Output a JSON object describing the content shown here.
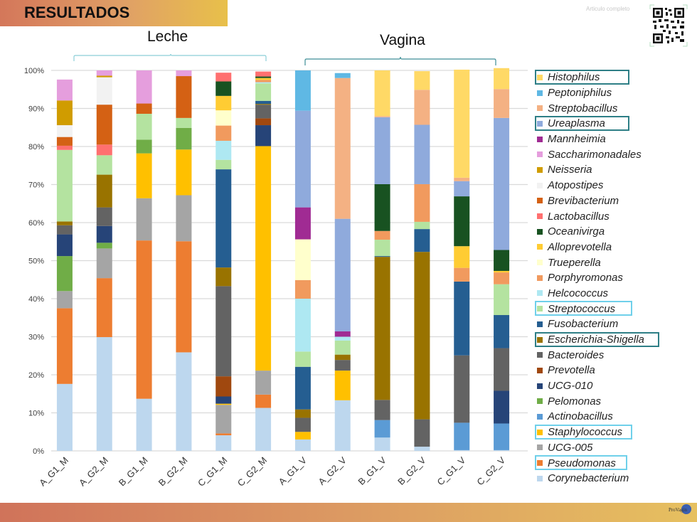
{
  "header": {
    "title": "RESULTADOS"
  },
  "top_right": {
    "article_link": "Articulo completo",
    "qr_icon": "qr-code-icon"
  },
  "footer": {
    "logo_text": "ProVagin"
  },
  "groups": [
    {
      "label": "Leche",
      "bracket_color": "#8ccfd8"
    },
    {
      "label": "Vagina",
      "bracket_color": "#3d8e96"
    }
  ],
  "legend_highlights": {
    "dark": {
      "color": "#2e7f86",
      "items": [
        "Histophilus",
        "Ureaplasma",
        "Escherichia-Shigella"
      ]
    },
    "light": {
      "color": "#6fd0ea",
      "items": [
        "Streptococcus",
        "Staphylococcus",
        "Pseudomonas"
      ]
    }
  },
  "chart_data": {
    "type": "bar",
    "stacked": true,
    "title": "",
    "xlabel": "",
    "ylabel": "",
    "ylim": [
      0,
      100
    ],
    "yticks": [
      "0%",
      "10%",
      "20%",
      "30%",
      "40%",
      "50%",
      "60%",
      "70%",
      "80%",
      "90%",
      "100%"
    ],
    "grid": true,
    "legend_position": "right",
    "categories": [
      "A_G1_M",
      "A_G2_M",
      "B_G1_M",
      "B_G2_M",
      "C_G1_M",
      "C_G2_M",
      "A_G1_V",
      "A_G2_V",
      "B_G1_V",
      "B_G2_V",
      "C_G1_V",
      "C_G2_V"
    ],
    "legend_order": [
      "Histophilus",
      "Peptoniphilus",
      "Streptobacillus",
      "Ureaplasma",
      "Mannheimia",
      "Saccharimonadales",
      "Neisseria",
      "Atopostipes",
      "Brevibacterium",
      "Lactobacillus",
      "Oceanivirga",
      "Alloprevotella",
      "Trueperella",
      "Porphyromonas",
      "Helcococcus",
      "Streptococcus",
      "Fusobacterium",
      "Escherichia-Shigella",
      "Bacteroides",
      "Prevotella",
      "UCG-010",
      "Pelomonas",
      "Actinobacillus",
      "Staphylococcus",
      "UCG-005",
      "Pseudomonas",
      "Corynebacterium"
    ],
    "colors": {
      "Histophilus": "#ffd966",
      "Peptoniphilus": "#5fb8e4",
      "Streptobacillus": "#f4b183",
      "Ureaplasma": "#8faadc",
      "Mannheimia": "#a02b93",
      "Saccharimonadales": "#e59edd",
      "Neisseria": "#d09c00",
      "Atopostipes": "#f2f2f2",
      "Brevibacterium": "#d46114",
      "Lactobacillus": "#ff7070",
      "Oceanivirga": "#185221",
      "Alloprevotella": "#ffcc33",
      "Trueperella": "#ffffcc",
      "Porphyromonas": "#f19a5e",
      "Helcococcus": "#aee8f2",
      "Streptococcus": "#b4e3a0",
      "Fusobacterium": "#255e91",
      "Escherichia-Shigella": "#997300",
      "Bacteroides": "#636363",
      "Prevotella": "#a0480f",
      "UCG-010": "#264478",
      "Pelomonas": "#70ad47",
      "Actinobacillus": "#5b9bd5",
      "Staphylococcus": "#ffc000",
      "UCG-005": "#a5a5a5",
      "Pseudomonas": "#ed7d31",
      "Corynebacterium": "#bdd7ee"
    },
    "series": [
      {
        "name": "Corynebacterium",
        "values": [
          17.6,
          29.9,
          13.7,
          25.9,
          4.1,
          11.3,
          3.0,
          13.3,
          3.5,
          1.1,
          0.2,
          0.2
        ]
      },
      {
        "name": "Pseudomonas",
        "values": [
          19.9,
          15.5,
          41.6,
          29.2,
          0.5,
          3.5,
          0,
          0,
          0,
          0,
          0,
          0
        ]
      },
      {
        "name": "UCG-005",
        "values": [
          4.5,
          7.8,
          11.1,
          12.1,
          7.5,
          6.3,
          0,
          0,
          0,
          0,
          0,
          0
        ]
      },
      {
        "name": "Staphylococcus",
        "values": [
          0,
          0,
          11.8,
          12.0,
          0.3,
          59.0,
          2.0,
          7.8,
          0,
          0,
          0,
          0
        ]
      },
      {
        "name": "Actinobacillus",
        "values": [
          0,
          0,
          0,
          0,
          0,
          0,
          0,
          0,
          4.6,
          0,
          7.2,
          7.0
        ]
      },
      {
        "name": "Pelomonas",
        "values": [
          9.2,
          1.5,
          3.6,
          5.7,
          0,
          0,
          0,
          0,
          0,
          0,
          0,
          0
        ]
      },
      {
        "name": "UCG-010",
        "values": [
          5.7,
          4.4,
          0,
          0,
          1.9,
          5.5,
          0,
          0,
          0,
          0,
          0,
          8.6
        ]
      },
      {
        "name": "Prevotella",
        "values": [
          0,
          0,
          0,
          0,
          5.3,
          1.8,
          0,
          0,
          0,
          0,
          0,
          0
        ]
      },
      {
        "name": "Bacteroides",
        "values": [
          2.4,
          4.9,
          0,
          0,
          23.7,
          3.6,
          3.7,
          2.8,
          5.3,
          7.2,
          17.7,
          11.2
        ]
      },
      {
        "name": "Escherichia-Shigella",
        "values": [
          1.0,
          8.6,
          0,
          0,
          4.9,
          0.2,
          2.2,
          1.4,
          37.6,
          44.0,
          0,
          0
        ]
      },
      {
        "name": "Fusobacterium",
        "values": [
          0,
          0,
          0,
          0,
          25.8,
          0.8,
          11.2,
          0,
          0.2,
          6.0,
          19.4,
          8.7
        ]
      },
      {
        "name": "Streptococcus",
        "values": [
          18.8,
          5.1,
          6.8,
          2.6,
          2.5,
          4.6,
          4.0,
          3.7,
          4.3,
          1.9,
          0,
          8.1
        ]
      },
      {
        "name": "Helcococcus",
        "values": [
          0,
          0,
          0,
          0,
          5.0,
          0.3,
          13.9,
          1.0,
          0,
          0,
          0,
          0
        ]
      },
      {
        "name": "Porphyromonas",
        "values": [
          0,
          0,
          0,
          0,
          4.0,
          0.6,
          4.9,
          0,
          2.3,
          9.9,
          3.6,
          3.1
        ]
      },
      {
        "name": "Trueperella",
        "values": [
          0,
          0,
          0,
          0,
          4.0,
          0,
          10.7,
          0,
          0,
          0,
          0,
          0
        ]
      },
      {
        "name": "Alloprevotella",
        "values": [
          0,
          0,
          0,
          0,
          3.8,
          0.5,
          0,
          0,
          0,
          0,
          5.7,
          0.4
        ]
      },
      {
        "name": "Oceanivirga",
        "values": [
          0,
          0,
          0,
          0,
          3.8,
          0.4,
          0,
          0,
          12.3,
          0,
          13.1,
          5.5
        ]
      },
      {
        "name": "Lactobacillus",
        "values": [
          1.1,
          2.8,
          0,
          0,
          2.3,
          1.3,
          0,
          0,
          0,
          0,
          0,
          0
        ]
      },
      {
        "name": "Brevibacterium",
        "values": [
          2.3,
          10.5,
          2.7,
          11.0,
          0,
          0,
          0,
          0,
          0,
          0,
          0,
          0
        ]
      },
      {
        "name": "Atopostipes",
        "values": [
          3.1,
          7.2,
          0,
          0,
          0,
          0,
          0,
          0,
          0,
          0,
          0,
          0
        ]
      },
      {
        "name": "Neisseria",
        "values": [
          6.5,
          0.4,
          0,
          0,
          0,
          0,
          0,
          0,
          0,
          0,
          0,
          0
        ]
      },
      {
        "name": "Saccharimonadales",
        "values": [
          5.5,
          1.4,
          8.7,
          1.5,
          0,
          0,
          0,
          0,
          0,
          0,
          0,
          0
        ]
      },
      {
        "name": "Mannheimia",
        "values": [
          0,
          0,
          0,
          0,
          0,
          0,
          8.4,
          1.4,
          0,
          0,
          0,
          0
        ]
      },
      {
        "name": "Ureaplasma",
        "values": [
          0,
          0,
          0,
          0,
          0,
          0,
          25.4,
          29.6,
          17.6,
          15.6,
          4.0,
          34.7
        ]
      },
      {
        "name": "Streptobacillus",
        "values": [
          0,
          0,
          0,
          0,
          0,
          0,
          0,
          37.0,
          0.3,
          9.2,
          0.9,
          7.6
        ]
      },
      {
        "name": "Peptoniphilus",
        "values": [
          0,
          0,
          0,
          0,
          0,
          0,
          10.6,
          1.3,
          0,
          0,
          0,
          0
        ]
      },
      {
        "name": "Histophilus",
        "values": [
          0,
          0,
          0,
          0,
          0,
          0,
          0,
          0,
          12.0,
          4.9,
          28.4,
          5.5
        ]
      }
    ]
  }
}
